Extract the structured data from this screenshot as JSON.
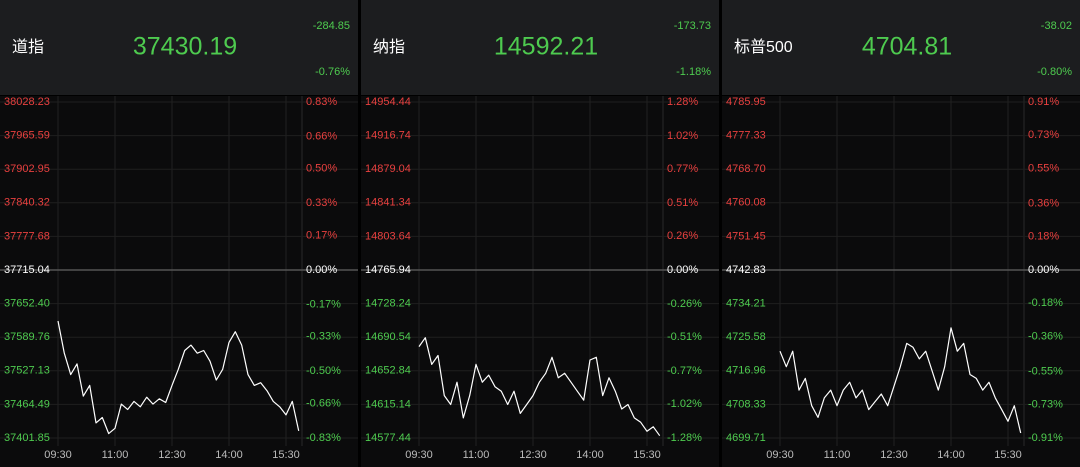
{
  "chart_data": [
    {
      "type": "line",
      "title": "道指",
      "value": 37430.19,
      "change": -284.85,
      "change_pct": {
        "value": -0.76,
        "label": "-0.76%"
      },
      "color": "#ffffff",
      "values": [
        37620,
        37560,
        37520,
        37540,
        37480,
        37500,
        37430,
        37440,
        37410,
        37420,
        37465,
        37455,
        37470,
        37460,
        37478,
        37465,
        37475,
        37468,
        37500,
        37530,
        37565,
        37575,
        37560,
        37565,
        37545,
        37510,
        37530,
        37580,
        37600,
        37575,
        37520,
        37500,
        37505,
        37490,
        37470,
        37460,
        37445,
        37470,
        37415
      ],
      "xlim": [
        0,
        39
      ],
      "xticks": [
        {
          "value": 0,
          "label": "09:30"
        },
        {
          "value": 9,
          "label": "11:00"
        },
        {
          "value": 18,
          "label": "12:30"
        },
        {
          "value": 27,
          "label": "14:00"
        },
        {
          "value": 36,
          "label": "15:30"
        }
      ],
      "ylim": [
        37401.85,
        38028.23
      ],
      "yticks": [
        38028.23,
        37965.59,
        37902.95,
        37840.32,
        37777.68,
        37715.04,
        {
          "value": 37652.4,
          "label": "37652.40"
        },
        37589.76,
        37527.13,
        37464.49,
        37401.85
      ],
      "y2lim": [
        -0.83,
        0.83
      ],
      "y2ticks": [
        {
          "value": 0.83,
          "label": "0.83%"
        },
        {
          "value": 0.66,
          "label": "0.66%"
        },
        {
          "value": 0.5,
          "label": "0.50%"
        },
        {
          "value": 0.33,
          "label": "0.33%"
        },
        {
          "value": 0.17,
          "label": "0.17%"
        },
        {
          "value": 0,
          "label": "0.00%"
        },
        {
          "value": -0.17,
          "label": "-0.17%"
        },
        {
          "value": -0.33,
          "label": "-0.33%"
        },
        {
          "value": -0.5,
          "label": "-0.50%"
        },
        {
          "value": -0.66,
          "label": "-0.66%"
        },
        {
          "value": -0.83,
          "label": "-0.83%"
        }
      ]
    },
    {
      "type": "line",
      "title": "纳指",
      "value": 14592.21,
      "change": -173.73,
      "change_pct": {
        "value": -1.18,
        "label": "-1.18%"
      },
      "color": "#ffffff",
      "values": [
        14680,
        14690,
        14660,
        14670,
        14625,
        14615,
        14640,
        14600,
        14625,
        14660,
        14640,
        14648,
        14635,
        14630,
        14615,
        14630,
        14605,
        14615,
        14625,
        14640,
        14650,
        14668,
        14645,
        14650,
        14640,
        14630,
        14620,
        14665,
        14668,
        14625,
        14645,
        14630,
        14610,
        14615,
        14600,
        14595,
        14585,
        14590,
        14580
      ],
      "xlim": [
        0,
        39
      ],
      "xticks": [
        {
          "value": 0,
          "label": "09:30"
        },
        {
          "value": 9,
          "label": "11:00"
        },
        {
          "value": 18,
          "label": "12:30"
        },
        {
          "value": 27,
          "label": "14:00"
        },
        {
          "value": 36,
          "label": "15:30"
        }
      ],
      "ylim": [
        14577.44,
        14954.44
      ],
      "yticks": [
        14954.44,
        14916.74,
        14879.04,
        14841.34,
        14803.64,
        14765.94,
        14728.24,
        14690.54,
        14652.84,
        14615.14,
        14577.44
      ],
      "y2lim": [
        -1.28,
        1.28
      ],
      "y2ticks": [
        {
          "value": 1.28,
          "label": "1.28%"
        },
        {
          "value": 1.02,
          "label": "1.02%"
        },
        {
          "value": 0.77,
          "label": "0.77%"
        },
        {
          "value": 0.51,
          "label": "0.51%"
        },
        {
          "value": 0.26,
          "label": "0.26%"
        },
        {
          "value": 0,
          "label": "0.00%"
        },
        {
          "value": -0.26,
          "label": "-0.26%"
        },
        {
          "value": -0.51,
          "label": "-0.51%"
        },
        {
          "value": -0.77,
          "label": "-0.77%"
        },
        {
          "value": -1.02,
          "label": "-1.02%"
        },
        {
          "value": -1.28,
          "label": "-1.28%"
        }
      ]
    },
    {
      "type": "line",
      "title": "标普500",
      "value": 4704.81,
      "change": -38.02,
      "change_pct": {
        "value": -0.8,
        "label": "-0.80%"
      },
      "color": "#ffffff",
      "values": [
        4722,
        4718,
        4722,
        4712,
        4715,
        4708,
        4705,
        4710,
        4712,
        4708,
        4712,
        4714,
        4710,
        4712,
        4707,
        4709,
        4711,
        4708,
        4713,
        4718,
        4724,
        4723,
        4720,
        4722,
        4717,
        4712,
        4718,
        4728,
        4722,
        4724,
        4716,
        4715,
        4712,
        4714,
        4710,
        4707,
        4704,
        4708,
        4701
      ],
      "xlim": [
        0,
        39
      ],
      "xticks": [
        {
          "value": 0,
          "label": "09:30"
        },
        {
          "value": 9,
          "label": "11:00"
        },
        {
          "value": 18,
          "label": "12:30"
        },
        {
          "value": 27,
          "label": "14:00"
        },
        {
          "value": 36,
          "label": "15:30"
        }
      ],
      "ylim": [
        4699.71,
        4785.95
      ],
      "yticks": [
        4785.95,
        4777.33,
        {
          "value": 4768.7,
          "label": "4768.70"
        },
        4760.08,
        4751.45,
        4742.83,
        4734.21,
        4725.58,
        4716.96,
        4708.33,
        4699.71
      ],
      "y2lim": [
        -0.91,
        0.91
      ],
      "y2ticks": [
        {
          "value": 0.91,
          "label": "0.91%"
        },
        {
          "value": 0.73,
          "label": "0.73%"
        },
        {
          "value": 0.55,
          "label": "0.55%"
        },
        {
          "value": 0.36,
          "label": "0.36%"
        },
        {
          "value": 0.18,
          "label": "0.18%"
        },
        {
          "value": 0,
          "label": "0.00%"
        },
        {
          "value": -0.18,
          "label": "-0.18%"
        },
        {
          "value": -0.36,
          "label": "-0.36%"
        },
        {
          "value": -0.55,
          "label": "-0.55%"
        },
        {
          "value": -0.73,
          "label": "-0.73%"
        },
        {
          "value": -0.91,
          "label": "-0.91%"
        }
      ]
    }
  ]
}
